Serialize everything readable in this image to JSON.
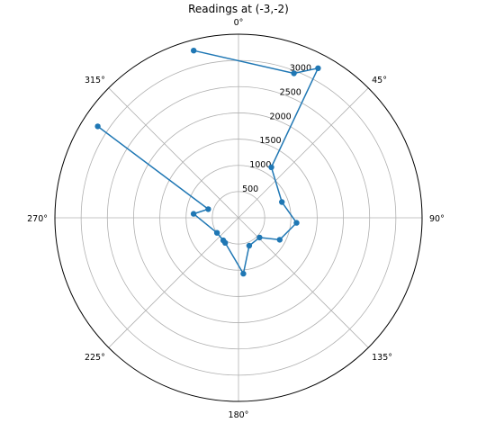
{
  "chart_data": {
    "type": "line",
    "projection": "polar",
    "title": "Readings at (-3,-2)",
    "theta_zero_location": "N",
    "theta_direction": "clockwise",
    "theta_ticks_deg": [
      0,
      45,
      90,
      135,
      180,
      225,
      270,
      315
    ],
    "theta_tick_labels": [
      "0°",
      "45°",
      "90°",
      "135°",
      "180°",
      "225°",
      "270°",
      "315°"
    ],
    "r_ticks": [
      500,
      1000,
      1500,
      2000,
      2500,
      3000
    ],
    "r_tick_labels": [
      "500",
      "1000",
      "1500",
      "2000",
      "2500",
      "3000"
    ],
    "r_max": 3500,
    "grid": true,
    "series": [
      {
        "color": "#1f77b4",
        "marker": "circle",
        "points": [
          {
            "theta_deg": 345,
            "r": 3300
          },
          {
            "theta_deg": 21,
            "r": 2950
          },
          {
            "theta_deg": 28,
            "r": 3230
          },
          {
            "theta_deg": 33,
            "r": 1150
          },
          {
            "theta_deg": 70,
            "r": 880
          },
          {
            "theta_deg": 95,
            "r": 1110
          },
          {
            "theta_deg": 118,
            "r": 890
          },
          {
            "theta_deg": 133,
            "r": 550
          },
          {
            "theta_deg": 159,
            "r": 570
          },
          {
            "theta_deg": 175,
            "r": 1070
          },
          {
            "theta_deg": 208,
            "r": 540
          },
          {
            "theta_deg": 214,
            "r": 520
          },
          {
            "theta_deg": 235,
            "r": 500
          },
          {
            "theta_deg": 275,
            "r": 860
          },
          {
            "theta_deg": 286,
            "r": 600
          },
          {
            "theta_deg": 303,
            "r": 3200
          }
        ]
      }
    ]
  }
}
